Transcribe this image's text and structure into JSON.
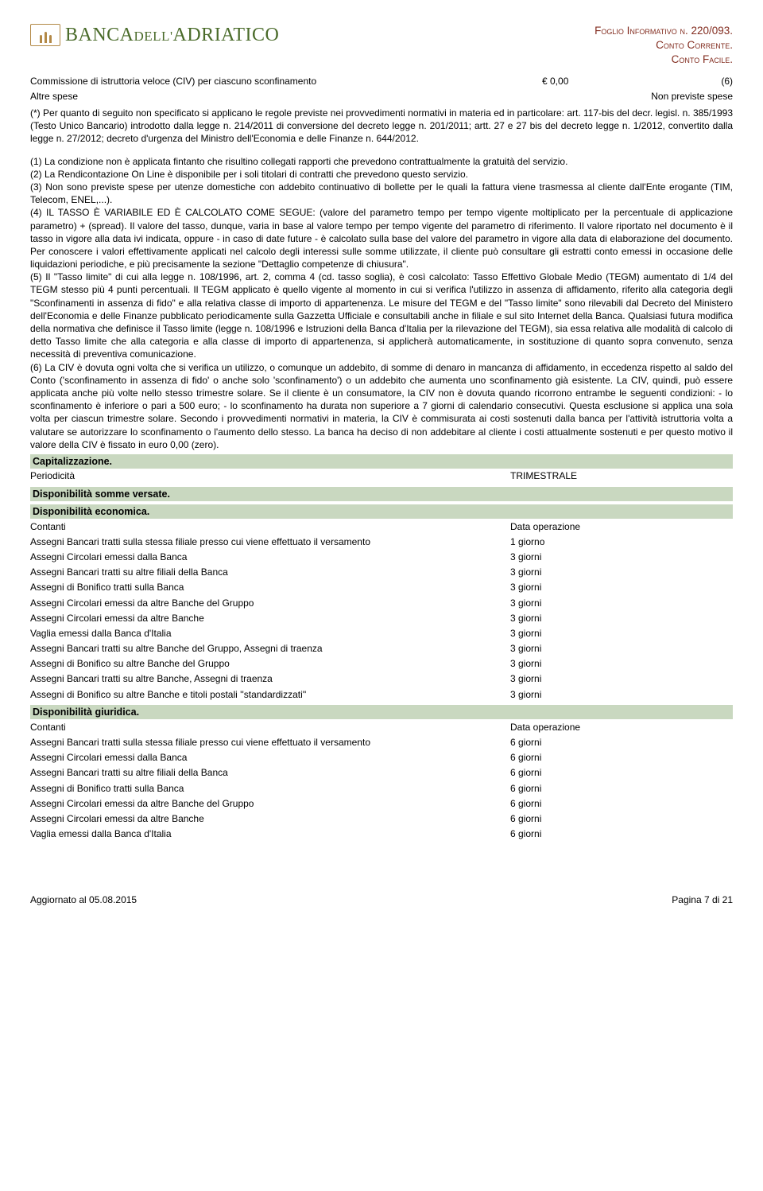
{
  "colors": {
    "brand_green": "#4a6b2a",
    "brand_gold": "#b38947",
    "header_red": "#822c1f",
    "section_bg": "#c9d8c0",
    "text": "#000000",
    "page_bg": "#ffffff"
  },
  "logo": {
    "bank_word1": "BANCA",
    "bank_word2": "DELL'",
    "bank_word3": "ADRIATICO"
  },
  "header": {
    "line1": "Foglio Informativo n. 220/093.",
    "line2": "Conto Corrente.",
    "line3": "Conto Facile."
  },
  "top_rows": [
    {
      "label": "Commissione di istruttoria veloce (CIV) per ciascuno sconfinamento",
      "value": "€ 0,00",
      "suffix": "(6)"
    },
    {
      "label": "Altre spese",
      "value": "Non previste spese",
      "suffix": ""
    }
  ],
  "preamble": "(*) Per quanto di seguito non specificato si applicano le regole previste nei provvedimenti normativi in materia ed in particolare: art. 117-bis del decr. legisl. n. 385/1993 (Testo Unico Bancario) introdotto dalla legge n. 214/2011 di conversione del decreto legge n. 201/2011; artt. 27 e 27 bis del decreto legge n. 1/2012, convertito dalla legge n. 27/2012; decreto d'urgenza del Ministro dell'Economia e delle Finanze n. 644/2012.",
  "notes": [
    "(1) La condizione non è applicata fintanto che risultino collegati rapporti che prevedono contrattualmente la gratuità del servizio.",
    "(2) La Rendicontazione On Line è disponibile per i soli titolari di contratti che prevedono questo servizio.",
    "(3) Non sono previste spese per utenze domestiche con addebito continuativo di bollette per le quali la fattura viene trasmessa al cliente dall'Ente erogante (TIM, Telecom, ENEL,...).",
    "(4) IL TASSO È VARIABILE ED È CALCOLATO COME SEGUE: (valore del parametro tempo per tempo vigente moltiplicato per la percentuale di applicazione parametro) + (spread). Il valore del tasso, dunque, varia in base al valore tempo per tempo vigente del parametro di riferimento. Il valore riportato nel documento è il tasso in vigore alla data ivi indicata, oppure - in caso di date future - è calcolato sulla base del valore del parametro in vigore alla data di elaborazione del documento. Per conoscere i valori effettivamente applicati nel calcolo degli interessi sulle somme utilizzate, il cliente può consultare gli estratti conto emessi in occasione delle liquidazioni periodiche, e più precisamente la sezione \"Dettaglio competenze di chiusura\".",
    "(5) Il \"Tasso limite\" di cui alla legge n. 108/1996, art. 2, comma 4 (cd. tasso soglia), è così calcolato: Tasso Effettivo Globale Medio (TEGM) aumentato di 1/4 del TEGM stesso più 4 punti percentuali. Il TEGM applicato è quello vigente al momento in cui si verifica l'utilizzo in assenza di affidamento, riferito alla categoria degli \"Sconfinamenti in assenza di fido\" e alla relativa classe di importo di appartenenza. Le misure del TEGM e del \"Tasso limite\" sono rilevabili dal Decreto del Ministero dell'Economia e delle Finanze pubblicato periodicamente sulla Gazzetta Ufficiale e consultabili anche in filiale e sul sito Internet della Banca. Qualsiasi futura modifica della normativa che definisce il Tasso limite (legge n. 108/1996 e Istruzioni della Banca d'Italia per la rilevazione del TEGM), sia essa relativa alle modalità di calcolo di detto Tasso limite che alla categoria e alla classe di importo di appartenenza, si applicherà automaticamente, in sostituzione di quanto sopra convenuto, senza necessità di preventiva comunicazione.",
    "(6) La CIV è dovuta ogni volta che si verifica un utilizzo, o comunque un addebito, di somme di denaro in mancanza di affidamento, in eccedenza rispetto al saldo del Conto ('sconfinamento in assenza di fido' o anche solo 'sconfinamento')  o un addebito che aumenta uno sconfinamento già esistente.   La CIV, quindi, può essere applicata anche più volte nello stesso trimestre solare.   Se il cliente è un consumatore, la CIV non è dovuta quando ricorrono entrambe le seguenti condizioni:   - lo sconfinamento è inferiore o pari a 500 euro;  - lo sconfinamento ha durata non superiore a 7 giorni di calendario consecutivi.   Questa esclusione si applica una sola volta per ciascun trimestre solare.   Secondo i provvedimenti normativi in materia, la CIV è commisurata ai costi sostenuti dalla banca per l'attività istruttoria volta a valutare se autorizzare lo sconfinamento o l'aumento dello stesso. La banca ha deciso di non addebitare al cliente i costi attualmente sostenuti e per questo motivo il valore della CIV è fissato in euro 0,00 (zero)."
  ],
  "sections": [
    {
      "title": "Capitalizzazione.",
      "rows": [
        {
          "label": "Periodicità",
          "value": "TRIMESTRALE"
        }
      ]
    },
    {
      "title": "Disponibilità somme versate.",
      "rows": []
    },
    {
      "title": "Disponibilità economica.",
      "rows": [
        {
          "label": "Contanti",
          "value": "Data operazione"
        },
        {
          "label": "Assegni Bancari tratti sulla stessa filiale presso cui viene effettuato il versamento",
          "value": "1 giorno"
        },
        {
          "label": "Assegni Circolari emessi dalla Banca",
          "value": "3 giorni"
        },
        {
          "label": "Assegni Bancari tratti su altre filiali della Banca",
          "value": "3 giorni"
        },
        {
          "label": "Assegni di Bonifico tratti sulla Banca",
          "value": "3 giorni"
        },
        {
          "label": "Assegni Circolari emessi da altre Banche del Gruppo",
          "value": "3 giorni"
        },
        {
          "label": "Assegni Circolari emessi da altre Banche",
          "value": "3 giorni"
        },
        {
          "label": "Vaglia emessi dalla Banca d'Italia",
          "value": "3 giorni"
        },
        {
          "label": "Assegni Bancari tratti su altre Banche del Gruppo, Assegni di traenza",
          "value": "3 giorni"
        },
        {
          "label": "Assegni di Bonifico su altre Banche del Gruppo",
          "value": "3 giorni"
        },
        {
          "label": "Assegni Bancari tratti su altre Banche, Assegni di traenza",
          "value": "3 giorni"
        },
        {
          "label": "Assegni di Bonifico su altre Banche e titoli postali ''standardizzati''",
          "value": "3 giorni"
        }
      ]
    },
    {
      "title": "Disponibilità giuridica.",
      "rows": [
        {
          "label": "Contanti",
          "value": "Data operazione"
        },
        {
          "label": "Assegni Bancari tratti sulla stessa filiale presso cui viene effettuato il versamento",
          "value": "6 giorni"
        },
        {
          "label": "Assegni Circolari emessi dalla Banca",
          "value": "6 giorni"
        },
        {
          "label": "Assegni Bancari tratti su altre filiali della Banca",
          "value": "6 giorni"
        },
        {
          "label": "Assegni di Bonifico tratti sulla Banca",
          "value": "6 giorni"
        },
        {
          "label": "Assegni Circolari emessi da altre Banche del Gruppo",
          "value": "6 giorni"
        },
        {
          "label": "Assegni Circolari emessi da altre Banche",
          "value": "6 giorni"
        },
        {
          "label": "Vaglia emessi dalla Banca d'Italia",
          "value": "6 giorni"
        }
      ]
    }
  ],
  "footer": {
    "left": "Aggiornato al 05.08.2015",
    "right": "Pagina 7 di 21"
  }
}
